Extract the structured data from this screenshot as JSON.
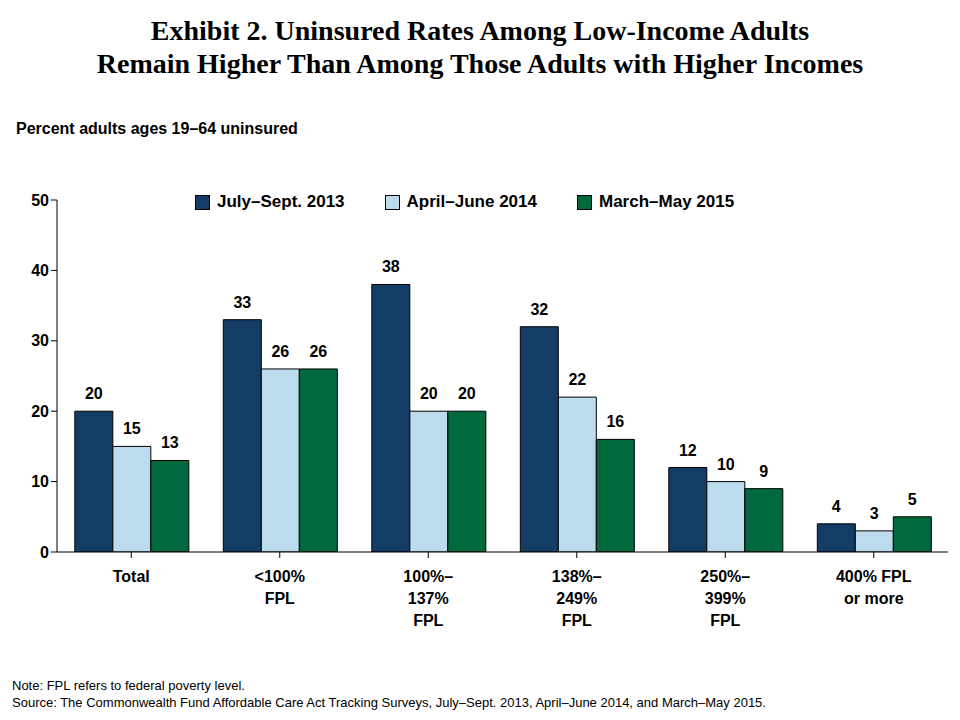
{
  "chart_data": {
    "type": "bar",
    "title": "Exhibit 2. Uninsured Rates Among Low-Income Adults\nRemain Higher Than Among Those Adults with Higher Incomes",
    "subtitle": "Percent adults ages 19–64 uninsured",
    "categories": [
      "Total",
      "<100%\nFPL",
      "100%–\n137%\nFPL",
      "138%–\n249%\nFPL",
      "250%–\n399%\nFPL",
      "400% FPL\nor more"
    ],
    "series": [
      {
        "name": "July–Sept. 2013",
        "color": "#133d65",
        "values": [
          20,
          33,
          38,
          32,
          12,
          4
        ]
      },
      {
        "name": "April–June 2014",
        "color": "#bcdcee",
        "values": [
          15,
          26,
          20,
          22,
          10,
          3
        ]
      },
      {
        "name": "March–May 2015",
        "color": "#006a3e",
        "values": [
          13,
          26,
          20,
          16,
          9,
          5
        ]
      }
    ],
    "ylim": [
      0,
      50
    ],
    "yticks": [
      0,
      10,
      20,
      30,
      40,
      50
    ],
    "grid": false,
    "legend": "top",
    "data_labels": true,
    "notes": [
      "Note: FPL refers to federal poverty level.",
      "Source: The Commonwealth Fund Affordable Care Act Tracking Surveys, July–Sept. 2013, April–June 2014, and March–May 2015."
    ]
  }
}
